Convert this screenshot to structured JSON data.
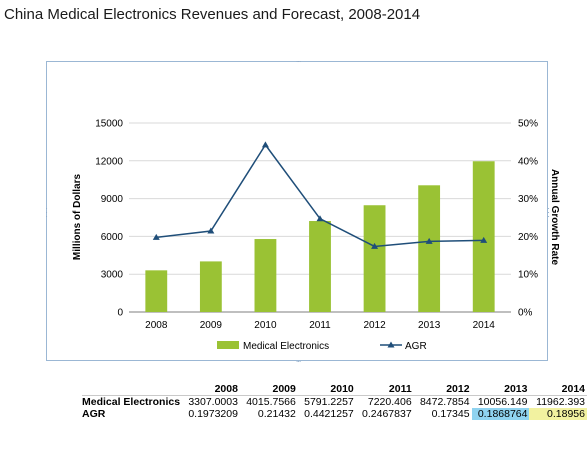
{
  "title": "China Medical Electronics Revenues and Forecast, 2008-2014",
  "chart_data": {
    "type": "bar",
    "categories": [
      "2008",
      "2009",
      "2010",
      "2011",
      "2012",
      "2013",
      "2014"
    ],
    "series": [
      {
        "name": "Medical Electronics",
        "type": "bar",
        "axis": "left",
        "color": "#9ac234",
        "values": [
          3307.0003,
          4015.7566,
          5791.2257,
          7220.406,
          8472.7854,
          10056.149,
          11962.393
        ]
      },
      {
        "name": "AGR",
        "type": "line",
        "axis": "right",
        "color": "#1f4e79",
        "values": [
          0.1973209,
          0.21432,
          0.4421257,
          0.2467837,
          0.17345,
          0.1868764,
          0.18956
        ]
      }
    ],
    "ylabel": "Millions of Dollars",
    "ylim": [
      0,
      15000
    ],
    "yticks": [
      "0",
      "3000",
      "6000",
      "9000",
      "12000",
      "15000"
    ],
    "y2label": "Annual Growth Rate",
    "y2lim": [
      0,
      0.5
    ],
    "y2ticks": [
      "0%",
      "10%",
      "20%",
      "30%",
      "40%",
      "50%"
    ],
    "grid": true,
    "legend": "bottom"
  },
  "table": {
    "headers": [
      "",
      "2008",
      "2009",
      "2010",
      "2011",
      "2012",
      "2013",
      "2014"
    ],
    "rows": [
      {
        "label": "Medical Electronics",
        "cells": [
          "3307.0003",
          "4015.7566",
          "5791.2257",
          "7220.406",
          "8472.7854",
          "10056.149",
          "11962.393"
        ]
      },
      {
        "label": "AGR",
        "cells": [
          "0.1973209",
          "0.21432",
          "0.4421257",
          "0.2467837",
          "0.17345",
          "0.1868764",
          "0.18956"
        ]
      }
    ]
  }
}
